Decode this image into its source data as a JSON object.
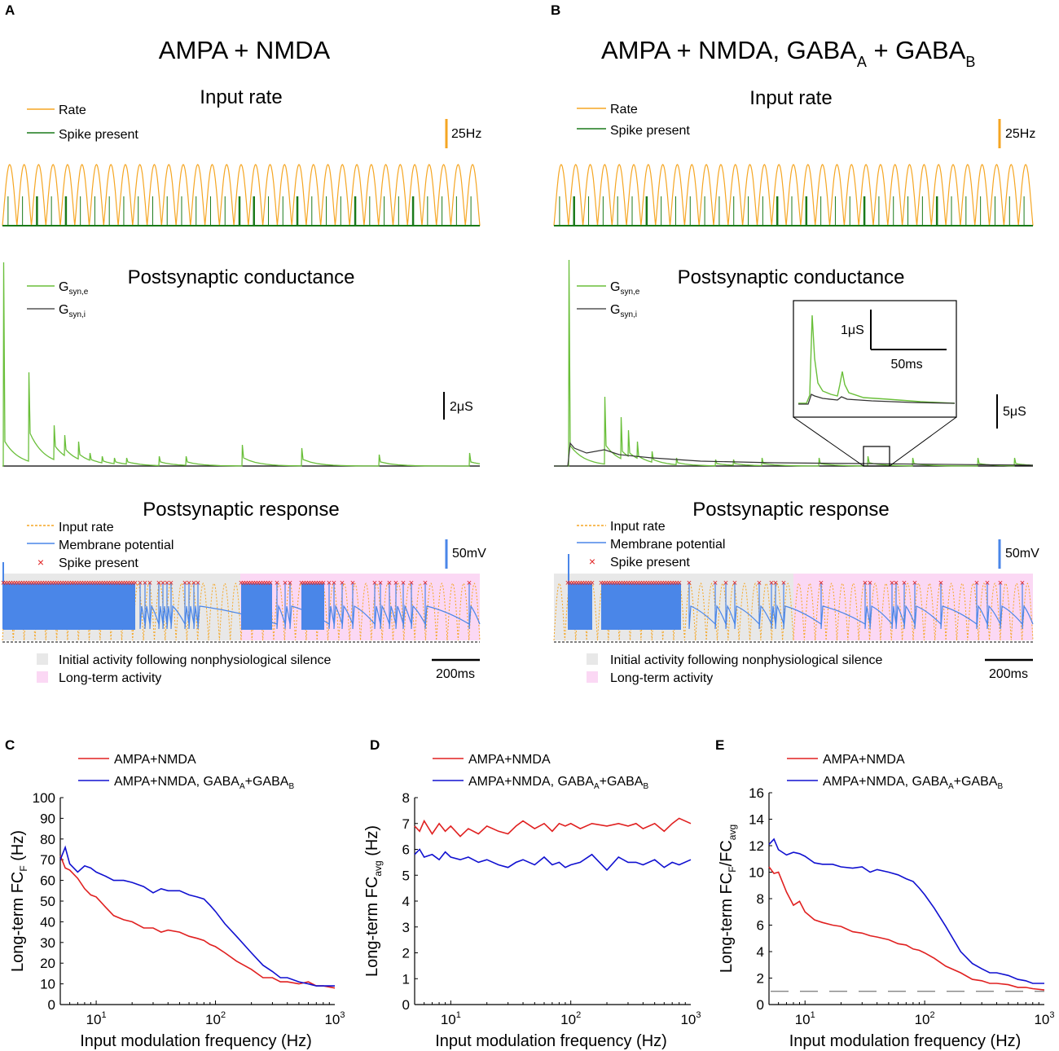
{
  "panel_a": {
    "letter": "A",
    "title": "AMPA + NMDA",
    "input_rate": {
      "title": "Input rate",
      "legend_rate": "Rate",
      "legend_spike": "Spike present",
      "scale": "25Hz"
    },
    "conductance": {
      "title": "Postsynaptic conductance",
      "legend_e": "G",
      "legend_e_sub": "syn,e",
      "legend_i": "G",
      "legend_i_sub": "syn,i",
      "scale": "2μS"
    },
    "response": {
      "title": "Postsynaptic response",
      "legend_input": "Input rate",
      "legend_vm": "Membrane potential",
      "legend_spike": "Spike present",
      "scale": "50mV",
      "legend_initial": "Initial activity following nonphysiological silence",
      "legend_longterm": "Long-term activity",
      "time_scale": "200ms"
    }
  },
  "panel_b": {
    "letter": "B",
    "title_main": "AMPA + NMDA, GABA",
    "title_sub1": "A",
    "title_mid": " + GABA",
    "title_sub2": "B",
    "input_rate": {
      "title": "Input rate",
      "legend_rate": "Rate",
      "legend_spike": "Spike present",
      "scale": "25Hz"
    },
    "conductance": {
      "title": "Postsynaptic conductance",
      "legend_e": "G",
      "legend_e_sub": "syn,e",
      "legend_i": "G",
      "legend_i_sub": "syn,i",
      "scale": "5μS",
      "inset_y_scale": "1μS",
      "inset_x_scale": "50ms"
    },
    "response": {
      "title": "Postsynaptic response",
      "legend_input": "Input rate",
      "legend_vm": "Membrane potential",
      "legend_spike": "Spike present",
      "scale": "50mV",
      "legend_initial": "Initial activity following nonphysiological silence",
      "legend_longterm": "Long-term activity",
      "time_scale": "200ms"
    }
  },
  "colors": {
    "rate": "#f5a623",
    "spike_green": "#1a7a1a",
    "g_exc": "#6abf3a",
    "g_inh": "#333333",
    "vm": "#4a86e8",
    "spike_red": "#e02020",
    "initial_bg": "#e8e8e8",
    "longterm_bg": "#fbd8f4",
    "ampa": "#e02020",
    "gaba": "#1010d0"
  },
  "chart_data": [
    {
      "type": "line",
      "panel": "C",
      "letter": "C",
      "xlabel": "Input modulation frequency (Hz)",
      "ylabel": "Long-term FC",
      "ylabel_sub": "F",
      "ylabel_tail": " (Hz)",
      "xscale": "log",
      "xlim": [
        5,
        1000
      ],
      "ylim": [
        0,
        100
      ],
      "yticks": [
        0,
        10,
        20,
        30,
        40,
        50,
        60,
        70,
        80,
        90,
        100
      ],
      "xticks": [
        {
          "base": "10",
          "exp": "1",
          "value": 10
        },
        {
          "base": "10",
          "exp": "2",
          "value": 100
        },
        {
          "base": "10",
          "exp": "3",
          "value": 1000
        }
      ],
      "legend": [
        {
          "label": "AMPA+NMDA"
        },
        {
          "label": "AMPA+NMDA, GABA",
          "sub1": "A",
          "mid": "+GABA",
          "sub2": "B"
        }
      ],
      "series": [
        {
          "name": "AMPA+NMDA",
          "color": "#e02020",
          "x": [
            5,
            5.5,
            6,
            7,
            8,
            9,
            10,
            12,
            14,
            17,
            20,
            25,
            30,
            35,
            40,
            50,
            60,
            70,
            80,
            90,
            100,
            120,
            150,
            200,
            250,
            300,
            350,
            400,
            500,
            600,
            700,
            800,
            1000
          ],
          "y": [
            72,
            66,
            65,
            61,
            56,
            53,
            52,
            47,
            43,
            41,
            40,
            37,
            37,
            35,
            36,
            35,
            33,
            32,
            31,
            29,
            28,
            25,
            21,
            17,
            13,
            13,
            11,
            11,
            10,
            11,
            9,
            9,
            8
          ]
        },
        {
          "name": "AMPA+NMDA, GABAA+GABAB",
          "color": "#1010d0",
          "x": [
            5,
            5.5,
            6,
            7,
            8,
            9,
            10,
            12,
            14,
            17,
            20,
            25,
            30,
            35,
            40,
            50,
            60,
            70,
            80,
            90,
            100,
            120,
            150,
            200,
            250,
            300,
            350,
            400,
            500,
            600,
            700,
            800,
            1000
          ],
          "y": [
            70,
            76,
            68,
            64,
            67,
            66,
            64,
            62,
            60,
            60,
            59,
            57,
            54,
            56,
            55,
            55,
            53,
            52,
            51,
            48,
            45,
            39,
            33,
            25,
            19,
            16,
            13,
            13,
            11,
            10,
            9,
            9,
            9
          ]
        }
      ]
    },
    {
      "type": "line",
      "panel": "D",
      "letter": "D",
      "xlabel": "Input modulation frequency (Hz)",
      "ylabel": "Long-term FC",
      "ylabel_sub": "avg",
      "ylabel_tail": " (Hz)",
      "xscale": "log",
      "xlim": [
        5,
        1000
      ],
      "ylim": [
        0,
        8
      ],
      "yticks": [
        0,
        1,
        2,
        3,
        4,
        5,
        6,
        7,
        8
      ],
      "xticks": [
        {
          "base": "10",
          "exp": "1",
          "value": 10
        },
        {
          "base": "10",
          "exp": "2",
          "value": 100
        },
        {
          "base": "10",
          "exp": "3",
          "value": 1000
        }
      ],
      "legend": [
        {
          "label": "AMPA+NMDA"
        },
        {
          "label": "AMPA+NMDA, GABA",
          "sub1": "A",
          "mid": "+GABA",
          "sub2": "B"
        }
      ],
      "series": [
        {
          "name": "AMPA+NMDA",
          "color": "#e02020",
          "x": [
            5,
            5.5,
            6,
            7,
            8,
            9,
            10,
            12,
            14,
            17,
            20,
            25,
            30,
            35,
            40,
            50,
            60,
            70,
            80,
            90,
            100,
            120,
            150,
            200,
            250,
            300,
            350,
            400,
            500,
            600,
            700,
            800,
            1000
          ],
          "y": [
            6.9,
            6.7,
            7.1,
            6.6,
            7.0,
            6.7,
            6.9,
            6.5,
            6.8,
            6.6,
            6.9,
            6.7,
            6.6,
            6.9,
            7.1,
            6.8,
            7.0,
            6.7,
            7.0,
            6.9,
            7.0,
            6.8,
            7.0,
            6.9,
            7.0,
            6.9,
            7.0,
            6.8,
            7.0,
            6.7,
            7.0,
            7.2,
            7.0
          ]
        },
        {
          "name": "AMPA+NMDA, GABAA+GABAB",
          "color": "#1010d0",
          "x": [
            5,
            5.5,
            6,
            7,
            8,
            9,
            10,
            12,
            14,
            17,
            20,
            25,
            30,
            35,
            40,
            50,
            60,
            70,
            80,
            90,
            100,
            120,
            150,
            200,
            250,
            300,
            350,
            400,
            500,
            600,
            700,
            800,
            1000
          ],
          "y": [
            5.8,
            6.0,
            5.7,
            5.8,
            5.6,
            5.9,
            5.7,
            5.6,
            5.7,
            5.5,
            5.6,
            5.4,
            5.3,
            5.5,
            5.6,
            5.4,
            5.7,
            5.4,
            5.5,
            5.3,
            5.4,
            5.5,
            5.8,
            5.2,
            5.7,
            5.5,
            5.5,
            5.4,
            5.6,
            5.3,
            5.5,
            5.4,
            5.6
          ]
        }
      ]
    },
    {
      "type": "line",
      "panel": "E",
      "letter": "E",
      "xlabel": "Input modulation frequency (Hz)",
      "ylabel": "Long-term FC",
      "ylabel_sub": "F",
      "ylabel_mid": "/FC",
      "ylabel_sub2": "avg",
      "xscale": "log",
      "xlim": [
        5,
        1000
      ],
      "ylim": [
        0,
        16
      ],
      "yticks": [
        0,
        2,
        4,
        6,
        8,
        10,
        12,
        14,
        16
      ],
      "xticks": [
        {
          "base": "10",
          "exp": "1",
          "value": 10
        },
        {
          "base": "10",
          "exp": "2",
          "value": 100
        },
        {
          "base": "10",
          "exp": "3",
          "value": 1000
        }
      ],
      "legend": [
        {
          "label": "AMPA+NMDA"
        },
        {
          "label": "AMPA+NMDA, GABA",
          "sub1": "A",
          "mid": "+GABA",
          "sub2": "B"
        }
      ],
      "reference_line": 1,
      "series": [
        {
          "name": "AMPA+NMDA",
          "color": "#e02020",
          "x": [
            5,
            5.5,
            6,
            7,
            8,
            9,
            10,
            12,
            14,
            17,
            20,
            25,
            30,
            35,
            40,
            50,
            60,
            70,
            80,
            90,
            100,
            120,
            150,
            200,
            250,
            300,
            350,
            400,
            500,
            600,
            700,
            800,
            1000
          ],
          "y": [
            10.4,
            9.9,
            10.0,
            8.5,
            7.5,
            7.8,
            7.0,
            6.4,
            6.2,
            6.0,
            5.9,
            5.5,
            5.4,
            5.2,
            5.1,
            4.9,
            4.6,
            4.5,
            4.2,
            4.1,
            3.9,
            3.5,
            2.9,
            2.4,
            1.9,
            1.8,
            1.6,
            1.6,
            1.5,
            1.3,
            1.3,
            1.2,
            1.1
          ]
        },
        {
          "name": "AMPA+NMDA, GABAA+GABAB",
          "color": "#1010d0",
          "x": [
            5,
            5.5,
            6,
            7,
            8,
            9,
            10,
            12,
            14,
            17,
            20,
            25,
            30,
            35,
            40,
            50,
            60,
            70,
            80,
            90,
            100,
            120,
            150,
            200,
            250,
            300,
            350,
            400,
            500,
            600,
            700,
            800,
            1000
          ],
          "y": [
            12.1,
            12.5,
            11.7,
            11.3,
            11.5,
            11.4,
            11.2,
            10.7,
            10.6,
            10.6,
            10.4,
            10.3,
            10.4,
            10.0,
            10.2,
            10.0,
            9.8,
            9.5,
            9.3,
            8.8,
            8.3,
            7.3,
            5.9,
            4.0,
            3.1,
            2.7,
            2.4,
            2.4,
            2.2,
            1.9,
            1.8,
            1.6,
            1.6
          ]
        }
      ]
    }
  ]
}
